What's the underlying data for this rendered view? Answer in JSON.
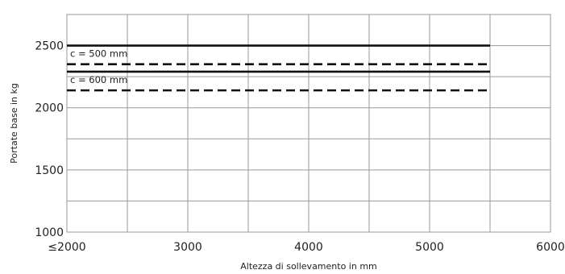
{
  "chart_data": {
    "type": "line",
    "xlabel": "Altezza di sollevamento in mm",
    "ylabel": "Portate base in kg",
    "xlim": [
      2000,
      6000
    ],
    "ylim": [
      1000,
      2750
    ],
    "x_ticks": [
      2000,
      3000,
      4000,
      5000,
      6000
    ],
    "x_tick_labels": [
      "≤2000",
      "3000",
      "4000",
      "5000",
      "6000"
    ],
    "y_ticks": [
      1000,
      1500,
      2000,
      2500
    ],
    "y_tick_labels": [
      "1000",
      "1500",
      "2000",
      "2500"
    ],
    "grid": true,
    "annotations": [
      {
        "text": "c = 500 mm"
      },
      {
        "text": "c = 600 mm"
      }
    ],
    "series": [
      {
        "group": "c = 500 mm",
        "style": "solid",
        "x": [
          2000,
          5500
        ],
        "y": [
          2500,
          2500
        ]
      },
      {
        "group": "c = 500 mm",
        "style": "dashed",
        "x": [
          2000,
          5500
        ],
        "y": [
          2350,
          2350
        ]
      },
      {
        "group": "c = 600 mm",
        "style": "solid",
        "x": [
          2000,
          5500
        ],
        "y": [
          2290,
          2290
        ]
      },
      {
        "group": "c = 600 mm",
        "style": "dashed",
        "x": [
          2000,
          5500
        ],
        "y": [
          2140,
          2140
        ]
      }
    ]
  }
}
